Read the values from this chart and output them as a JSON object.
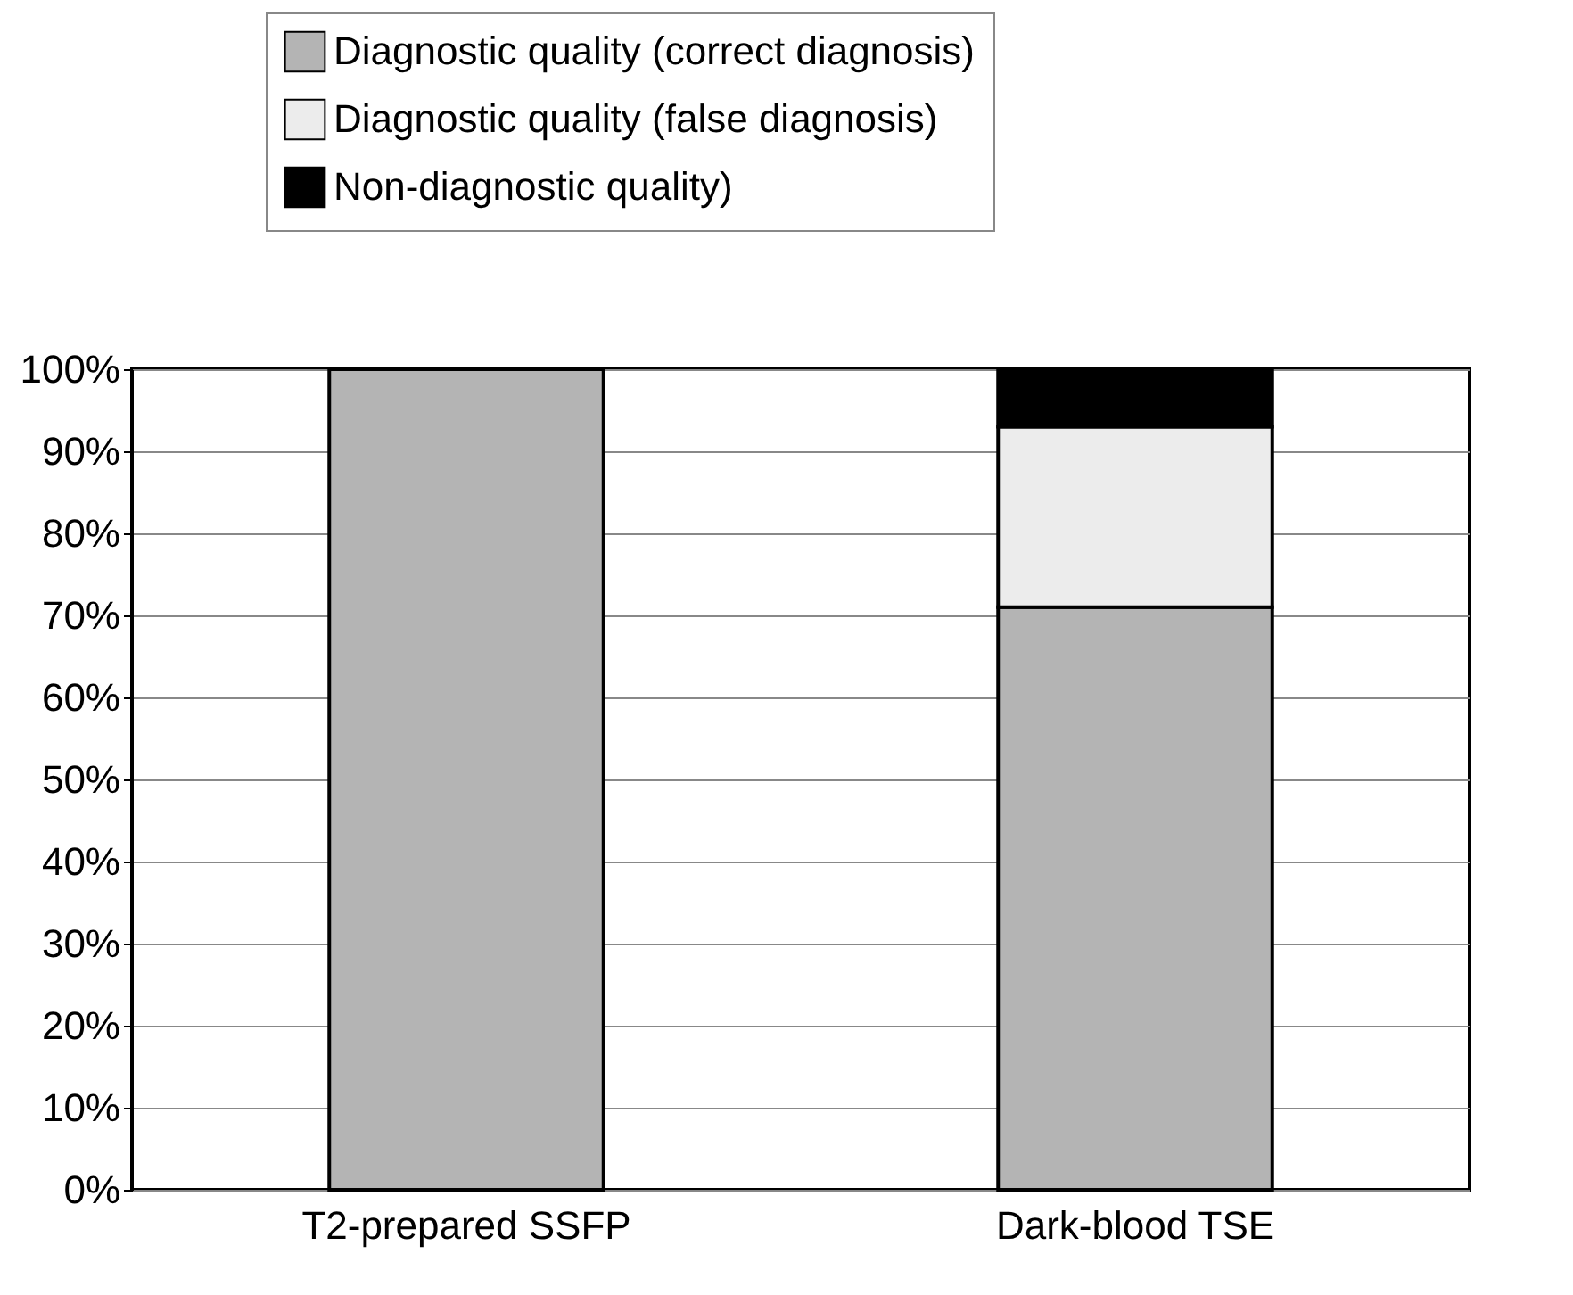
{
  "chart_data": {
    "type": "bar",
    "stacked": true,
    "categories": [
      "T2-prepared SSFP",
      "Dark-blood TSE"
    ],
    "series": [
      {
        "name": "Diagnostic quality (correct diagnosis)",
        "color": "#b4b4b4",
        "values": [
          100,
          71
        ]
      },
      {
        "name": "Diagnostic quality (false diagnosis)",
        "color": "#ececec",
        "values": [
          0,
          22
        ]
      },
      {
        "name": "Non-diagnostic quality)",
        "color": "#000000",
        "values": [
          0,
          7
        ]
      }
    ],
    "ylim": [
      0,
      100
    ],
    "yticks": [
      {
        "value": 0,
        "label": "0%"
      },
      {
        "value": 10,
        "label": "10%"
      },
      {
        "value": 20,
        "label": "20%"
      },
      {
        "value": 30,
        "label": "30%"
      },
      {
        "value": 40,
        "label": "40%"
      },
      {
        "value": 50,
        "label": "50%"
      },
      {
        "value": 60,
        "label": "60%"
      },
      {
        "value": 70,
        "label": "70%"
      },
      {
        "value": 80,
        "label": "80%"
      },
      {
        "value": 90,
        "label": "90%"
      },
      {
        "value": 100,
        "label": "100%"
      }
    ],
    "grid": "y",
    "legend": "top"
  }
}
